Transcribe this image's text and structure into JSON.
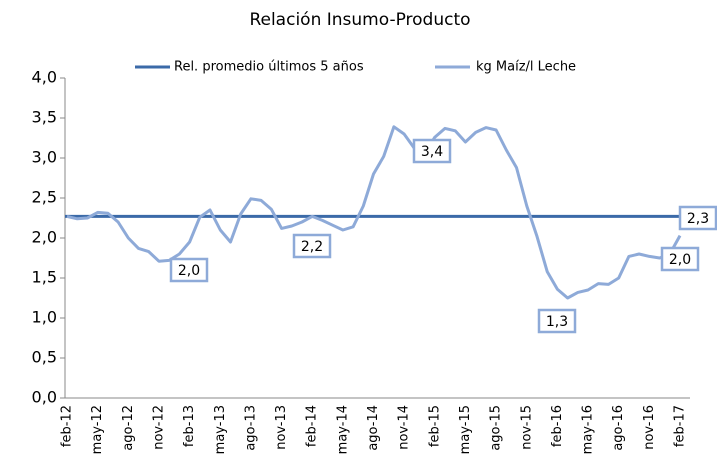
{
  "chart_data": {
    "type": "line",
    "title": "Relación Insumo-Producto",
    "categories": [
      "feb-12",
      null,
      null,
      "may-12",
      null,
      null,
      "ago-12",
      null,
      null,
      "nov-12",
      null,
      null,
      "feb-13",
      null,
      null,
      "may-13",
      null,
      null,
      "ago-13",
      null,
      null,
      "nov-13",
      null,
      null,
      "feb-14",
      null,
      null,
      "may-14",
      null,
      null,
      "ago-14",
      null,
      null,
      "nov-14",
      null,
      null,
      "feb-15",
      null,
      null,
      "may-15",
      null,
      null,
      "ago-15",
      null,
      null,
      "nov-15",
      null,
      null,
      "feb-16",
      null,
      null,
      "may-16",
      null,
      null,
      "ago-16",
      null,
      null,
      "nov-16",
      null,
      null,
      "feb-17"
    ],
    "series": [
      {
        "name": "Rel. promedio últimos 5 años",
        "color": "#3b6aa8",
        "constant": 2.27
      },
      {
        "name": "kg Maíz/l Leche",
        "color": "#8eaad8",
        "values": [
          2.27,
          2.24,
          2.25,
          2.32,
          2.31,
          2.2,
          2.0,
          1.87,
          1.83,
          1.71,
          1.72,
          1.8,
          1.95,
          2.26,
          2.35,
          2.1,
          1.95,
          2.3,
          2.49,
          2.47,
          2.36,
          2.12,
          2.15,
          2.2,
          2.27,
          2.22,
          2.16,
          2.1,
          2.14,
          2.4,
          2.8,
          3.02,
          3.39,
          3.3,
          3.12,
          3.05,
          3.26,
          3.37,
          3.34,
          3.2,
          3.32,
          3.38,
          3.35,
          3.1,
          2.88,
          2.4,
          2.02,
          1.58,
          1.36,
          1.25,
          1.32,
          1.35,
          1.43,
          1.42,
          1.5,
          1.77,
          1.8,
          1.77,
          1.75,
          1.8,
          2.03
        ]
      }
    ],
    "annotations": [
      "2,0",
      "2,2",
      "3,4",
      "1,3",
      "2,0",
      "2,3"
    ],
    "ylim": [
      0,
      4
    ],
    "yticks": [
      {
        "value": 0,
        "label": "0,0"
      },
      {
        "value": 0.5,
        "label": "0,5"
      },
      {
        "value": 1,
        "label": "1,0"
      },
      {
        "value": 1.5,
        "label": "1,5"
      },
      {
        "value": 2,
        "label": "2,0"
      },
      {
        "value": 2.5,
        "label": "2,5"
      },
      {
        "value": 3,
        "label": "3,0"
      },
      {
        "value": 3.5,
        "label": "3,5"
      },
      {
        "value": 4,
        "label": "4,0"
      }
    ],
    "legend": "top"
  }
}
